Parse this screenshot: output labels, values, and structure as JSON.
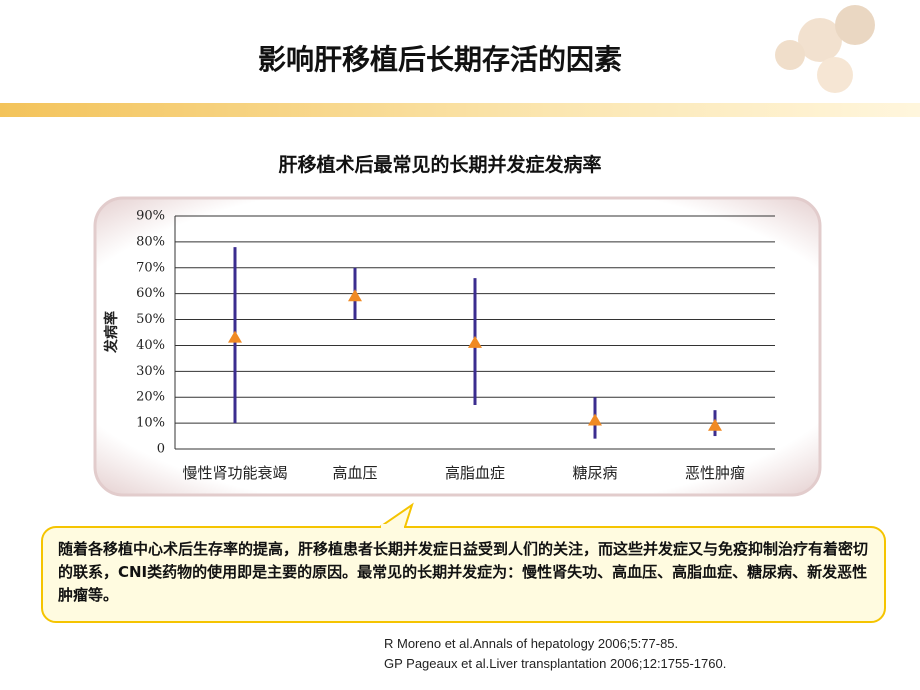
{
  "title": "影响肝移植后长期存活的因素",
  "chart_data": {
    "type": "range",
    "title": "肝移植术后最常见的长期并发症发病率",
    "y_label": "发病率",
    "categories": [
      "慢性肾功能衰竭",
      "高血压",
      "高脂血症",
      "糖尿病",
      "恶性肿瘤"
    ],
    "values": [
      43,
      59,
      41,
      11,
      9
    ],
    "low": [
      10,
      50,
      17,
      4,
      5
    ],
    "high": [
      78,
      70,
      66,
      20,
      15
    ],
    "range_color": "#3b2d8f",
    "marker_color": "#f08a24",
    "ylim": [
      0,
      90
    ],
    "yticks": [
      0,
      {
        "value": 10,
        "label": "10%"
      },
      {
        "value": 20,
        "label": "20%"
      },
      {
        "value": 30,
        "label": "30%"
      },
      {
        "value": 40,
        "label": "40%"
      },
      {
        "value": 50,
        "label": "50%"
      },
      {
        "value": 60,
        "label": "60%"
      },
      {
        "value": 70,
        "label": "70%"
      },
      {
        "value": 80,
        "label": "80%"
      },
      {
        "value": 90,
        "label": "90%"
      }
    ],
    "grid": true
  },
  "callout": "随着各移植中心术后生存率的提高，肝移植患者长期并发症日益受到人们的关注，而这些并发症又与免疫抑制治疗有着密切的联系，CNI类药物的使用即是主要的原因。最常见的长期并发症为：慢性肾失功、高血压、高脂血症、糖尿病、新发恶性肿瘤等。",
  "references": [
    "R Moreno et al.Annals of hepatology 2006;5:77-85.",
    "GP Pageaux et al.Liver transplantation 2006;12:1755-1760."
  ]
}
